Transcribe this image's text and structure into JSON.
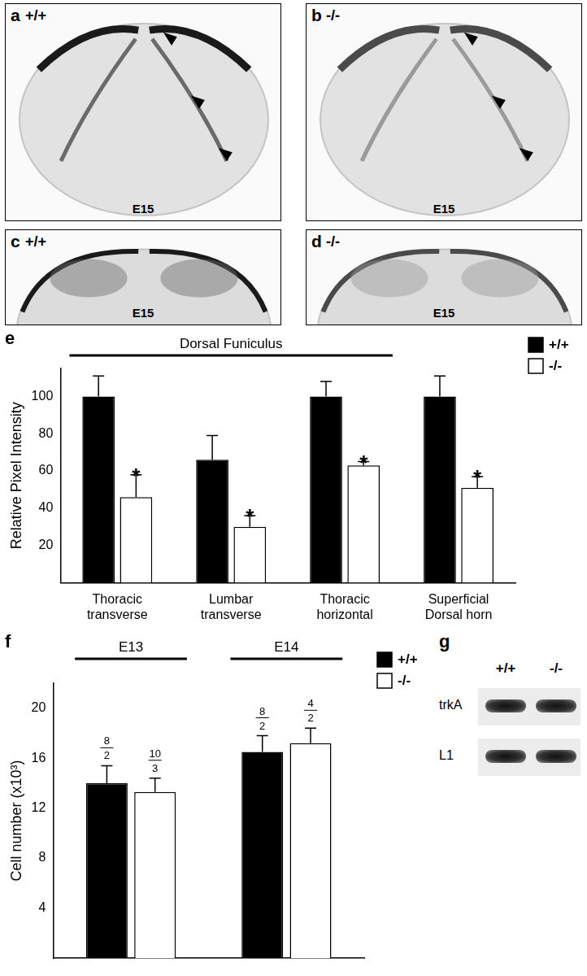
{
  "panels": [
    {
      "letter": "a",
      "genotype": "+/+",
      "age": "E15"
    },
    {
      "letter": "b",
      "genotype": "-/-",
      "age": "E15"
    },
    {
      "letter": "c",
      "genotype": "+/+",
      "age": "E15"
    },
    {
      "letter": "d",
      "genotype": "-/-",
      "age": "E15"
    }
  ],
  "chart_data": [
    {
      "letter": "e",
      "type": "bar",
      "y_label": "Relative Pixel Intensity",
      "annotation": {
        "text": "Dorsal Funiculus",
        "categories": [
          "Thoracic transverse",
          "Lumbar transverse",
          "Thoracic horizontal"
        ]
      },
      "categories": [
        "Thoracic transverse",
        "Lumbar transverse",
        "Thoracic horizontal",
        "Superficial Dorsal horn"
      ],
      "ylim": [
        0,
        115
      ],
      "yticks": [
        20,
        40,
        60,
        80,
        100
      ],
      "grid": false,
      "legend": "top-right",
      "series": [
        {
          "name": "+/+",
          "color": "#000000",
          "values": [
            100,
            66,
            100,
            100
          ],
          "errors": [
            11,
            13,
            8,
            11
          ]
        },
        {
          "name": "-/-",
          "color": "#ffffff",
          "values": [
            46,
            30,
            63,
            51
          ],
          "errors": [
            12,
            6,
            2,
            6
          ],
          "annotations": [
            "*",
            "*",
            "*",
            "*"
          ]
        }
      ]
    },
    {
      "letter": "f",
      "type": "bar",
      "y_label": "Cell number (x10³)",
      "categories": [
        "E13",
        "E14"
      ],
      "ylim": [
        0,
        22
      ],
      "yticks": [
        4,
        8,
        12,
        16,
        20
      ],
      "grid": false,
      "legend": "top-right",
      "tick_labels": "y",
      "series": [
        {
          "name": "+/+",
          "color": "#000000",
          "values": [
            14.0,
            16.5
          ],
          "errors": [
            1.4,
            1.3
          ],
          "n_labels": [
            {
              "numerator": "8",
              "denominator": "2"
            },
            {
              "numerator": "8",
              "denominator": "2"
            }
          ]
        },
        {
          "name": "-/-",
          "color": "#ffffff",
          "values": [
            13.3,
            17.2
          ],
          "errors": [
            1.1,
            1.2
          ],
          "n_labels": [
            {
              "numerator": "10",
              "denominator": "3"
            },
            {
              "numerator": "4",
              "denominator": "2"
            }
          ]
        }
      ]
    }
  ],
  "blot": {
    "letter": "g",
    "columns": [
      "+/+",
      "-/-"
    ],
    "rows": [
      "trkA",
      "L1"
    ]
  }
}
